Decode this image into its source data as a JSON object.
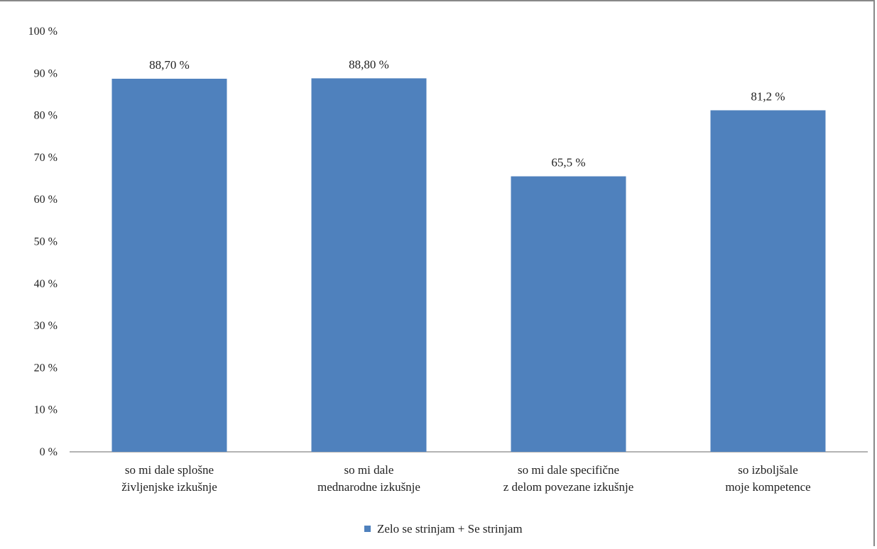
{
  "chart_data": {
    "type": "bar",
    "categories": [
      [
        "so mi dale splošne",
        "življenjske izkušnje"
      ],
      [
        "so mi dale",
        "mednarodne izkušnje"
      ],
      [
        "so mi dale specifične",
        "z delom povezane izkušnje"
      ],
      [
        "so izboljšale",
        "moje kompetence"
      ]
    ],
    "series": [
      {
        "name": "Zelo se strinjam + Se strinjam",
        "values": [
          88.7,
          88.8,
          65.5,
          81.2
        ],
        "color": "#4F81BD"
      }
    ],
    "data_labels": [
      "88,70 %",
      "88,80 %",
      "65,5 %",
      "81,2 %"
    ],
    "y_ticks": [
      "0 %",
      "10 %",
      "20 %",
      "30 %",
      "40 %",
      "50 %",
      "60 %",
      "70 %",
      "80 %",
      "90 %",
      "100 %"
    ],
    "ylim": [
      0,
      100
    ],
    "grid": false,
    "legend_position": "bottom",
    "title": "",
    "xlabel": "",
    "ylabel": ""
  }
}
